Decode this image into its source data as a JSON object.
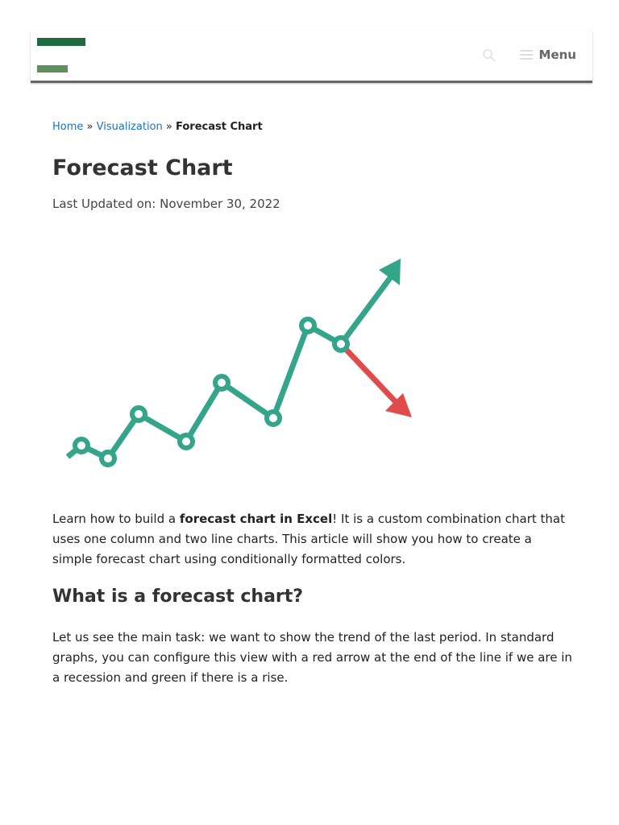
{
  "header": {
    "menu": "Menu"
  },
  "breadcrumb": [
    "Home",
    "»",
    "Visualization",
    "»",
    "Forecast Chart"
  ],
  "article": {
    "title": "Forecast Chart",
    "last_updated": "Last Updated on: November 30, 2022",
    "intro": [
      "Learn how to build a ",
      "forecast chart in Excel",
      "! It is a custom combination chart that uses one column and two line charts. This article will show you how to create a simple forecast chart using conditionally formatted colors."
    ],
    "heading": "What is a forecast chart?",
    "paragraph": "Let us see the main task: we want to show the trend of the last period. In standard graphs, you can configure this view with a red arrow at the end of the line if we are in a recession and green if there is a rise."
  }
}
